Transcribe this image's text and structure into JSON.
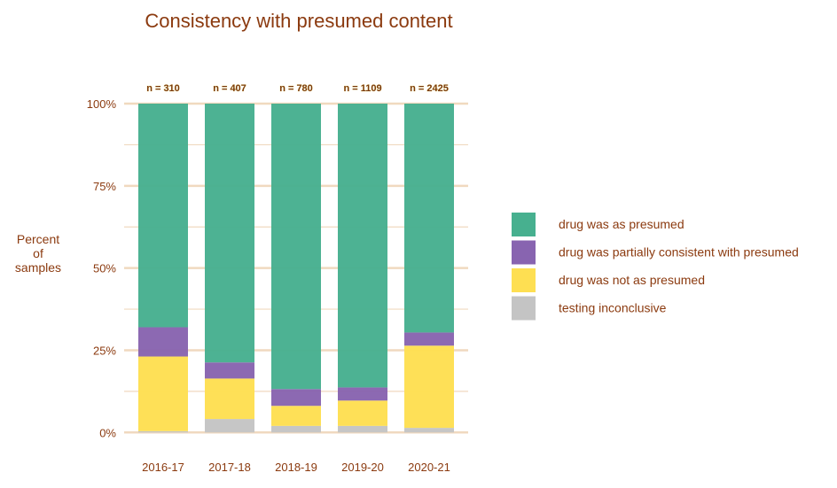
{
  "chart_data": {
    "type": "bar",
    "stacked": true,
    "title": "Consistency with presumed content",
    "ylabel": "Percent\nof\nsamples",
    "xlabel": "",
    "ylim": [
      0,
      100
    ],
    "yticks": [
      "0%",
      "25%",
      "50%",
      "75%",
      "100%"
    ],
    "categories": [
      "2016-17",
      "2017-18",
      "2018-19",
      "2019-20",
      "2020-21"
    ],
    "bar_labels": [
      "n = 310",
      "n = 407",
      "n = 780",
      "n = 1109",
      "n = 2425"
    ],
    "legend_position": "right",
    "grid": true,
    "series": [
      {
        "name": "testing inconclusive",
        "color": "#C4C4C4",
        "values": [
          0.4,
          4.1,
          2.0,
          2.0,
          1.4
        ]
      },
      {
        "name": "drug was not as presumed",
        "color": "#FEDF52",
        "values": [
          22.7,
          12.3,
          6.1,
          7.7,
          25.0
        ]
      },
      {
        "name": "drug was partially consistent with presumed",
        "color": "#8864B0",
        "values": [
          8.9,
          4.9,
          5.1,
          4.0,
          4.0
        ]
      },
      {
        "name": "drug was as presumed",
        "color": "#47B08F",
        "values": [
          68.0,
          78.7,
          86.8,
          86.3,
          69.6
        ]
      }
    ],
    "legend_order": [
      "drug was as presumed",
      "drug was partially consistent with presumed",
      "drug was not as presumed",
      "testing inconclusive"
    ],
    "text_color": "#8B3A0F",
    "grid_color": "#F0D9BF"
  }
}
